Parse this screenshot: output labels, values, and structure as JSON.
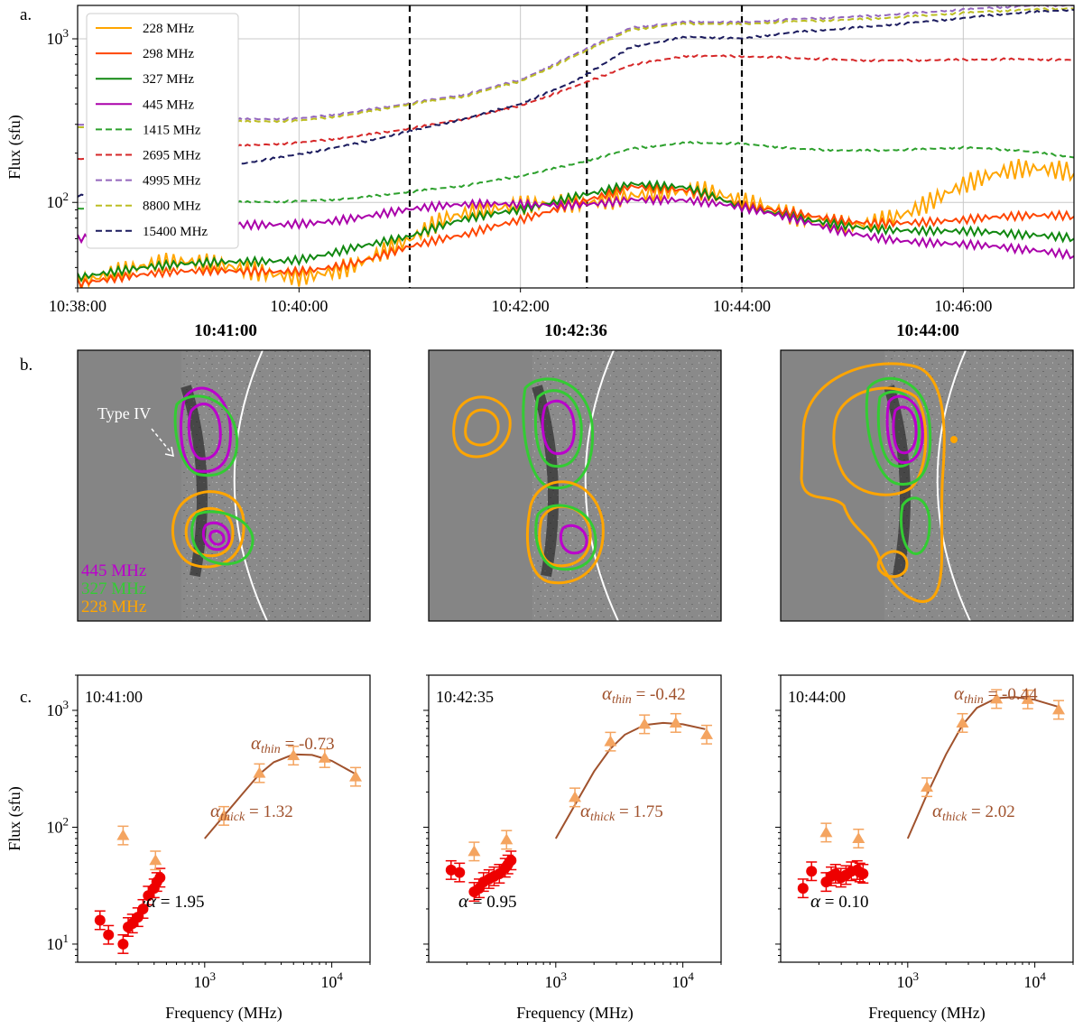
{
  "panel_letters": {
    "a": "a.",
    "b": "b.",
    "c": "c."
  },
  "chart_data": [
    {
      "type": "line",
      "panel": "a",
      "ylabel": "Flux (sfu)",
      "yscale": "log",
      "ylim": [
        30,
        1600
      ],
      "xlim": [
        "10:38:00",
        "10:47:00"
      ],
      "x_ticks": [
        "10:38:00",
        "10:40:00",
        "10:42:00",
        "10:44:00",
        "10:46:00"
      ],
      "y_ticks": [
        "10^2",
        "10^3"
      ],
      "grid": true,
      "legend_position": "top-left",
      "vertical_markers": [
        "10:41:00",
        "10:42:36",
        "10:44:00"
      ],
      "series": [
        {
          "name": "228 MHz",
          "color": "#ffa500",
          "style": "solid",
          "x": [
            "10:38:00",
            "10:39:00",
            "10:40:00",
            "10:40:30",
            "10:41:00",
            "10:41:20",
            "10:41:40",
            "10:42:00",
            "10:42:20",
            "10:42:40",
            "10:43:00",
            "10:43:20",
            "10:43:40",
            "10:44:00",
            "10:44:30",
            "10:45:00",
            "10:45:30",
            "10:46:00",
            "10:46:30",
            "10:47:00"
          ],
          "values": [
            35,
            38,
            40,
            45,
            55,
            70,
            80,
            95,
            110,
            115,
            120,
            115,
            105,
            88,
            80,
            82,
            95,
            120,
            140,
            150
          ]
        },
        {
          "name": "298 MHz",
          "color": "#ff4500",
          "style": "solid",
          "x": [
            "10:38:00",
            "10:39:00",
            "10:40:00",
            "10:40:30",
            "10:41:00",
            "10:41:30",
            "10:42:00",
            "10:42:30",
            "10:43:00",
            "10:43:30",
            "10:44:00",
            "10:44:30",
            "10:45:00",
            "10:45:30",
            "10:46:00",
            "10:46:30",
            "10:47:00"
          ],
          "values": [
            33,
            36,
            40,
            44,
            52,
            60,
            78,
            105,
            130,
            115,
            90,
            85,
            80,
            78,
            76,
            78,
            82
          ]
        },
        {
          "name": "327 MHz",
          "color": "#118811",
          "style": "solid",
          "x": [
            "10:38:00",
            "10:39:00",
            "10:40:00",
            "10:40:30",
            "10:41:00",
            "10:41:30",
            "10:42:00",
            "10:42:30",
            "10:43:00",
            "10:43:30",
            "10:44:00",
            "10:44:30",
            "10:45:00",
            "10:45:30",
            "10:46:00",
            "10:46:30",
            "10:47:00"
          ],
          "values": [
            36,
            40,
            47,
            55,
            60,
            75,
            90,
            115,
            135,
            120,
            88,
            80,
            75,
            70,
            65,
            60,
            60
          ]
        },
        {
          "name": "445 MHz",
          "color": "#aa00aa",
          "style": "solid",
          "x": [
            "10:38:00",
            "10:39:00",
            "10:40:00",
            "10:40:30",
            "10:41:00",
            "10:41:30",
            "10:42:00",
            "10:42:30",
            "10:43:00",
            "10:43:30",
            "10:44:00",
            "10:44:30",
            "10:45:00",
            "10:45:30",
            "10:46:00",
            "10:46:30",
            "10:47:00"
          ],
          "values": [
            62,
            68,
            78,
            83,
            88,
            92,
            97,
            102,
            108,
            100,
            88,
            78,
            68,
            60,
            54,
            49,
            47
          ]
        },
        {
          "name": "1415 MHz",
          "color": "#2ca02c",
          "style": "dashed",
          "x": [
            "10:38:00",
            "10:39:00",
            "10:40:00",
            "10:40:30",
            "10:41:00",
            "10:41:30",
            "10:42:00",
            "10:42:30",
            "10:43:00",
            "10:43:30",
            "10:44:00",
            "10:44:30",
            "10:45:00",
            "10:45:30",
            "10:46:00",
            "10:46:30",
            "10:47:00"
          ],
          "values": [
            92,
            98,
            103,
            107,
            115,
            125,
            145,
            175,
            215,
            230,
            225,
            212,
            210,
            212,
            215,
            205,
            188
          ]
        },
        {
          "name": "2695 MHz",
          "color": "#d62728",
          "style": "dashed",
          "x": [
            "10:38:00",
            "10:39:00",
            "10:40:00",
            "10:40:30",
            "10:41:00",
            "10:41:30",
            "10:42:00",
            "10:42:30",
            "10:43:00",
            "10:43:30",
            "10:44:00",
            "10:44:30",
            "10:45:00",
            "10:45:30",
            "10:46:00",
            "10:46:30",
            "10:47:00"
          ],
          "values": [
            185,
            210,
            235,
            255,
            280,
            320,
            390,
            520,
            700,
            780,
            770,
            760,
            750,
            745,
            740,
            740,
            740
          ]
        },
        {
          "name": "4995 MHz",
          "color": "#9467bd",
          "style": "dashed",
          "x": [
            "10:38:00",
            "10:39:00",
            "10:40:00",
            "10:40:30",
            "10:41:00",
            "10:41:30",
            "10:42:00",
            "10:42:30",
            "10:43:00",
            "10:43:30",
            "10:44:00",
            "10:44:30",
            "10:45:00",
            "10:45:30",
            "10:46:00",
            "10:46:30",
            "10:47:00"
          ],
          "values": [
            300,
            315,
            330,
            360,
            400,
            450,
            560,
            820,
            1180,
            1260,
            1240,
            1320,
            1380,
            1440,
            1500,
            1560,
            1600
          ]
        },
        {
          "name": "8800 MHz",
          "color": "#bcbd22",
          "style": "dashed",
          "x": [
            "10:38:00",
            "10:39:00",
            "10:40:00",
            "10:40:30",
            "10:41:00",
            "10:41:30",
            "10:42:00",
            "10:42:30",
            "10:43:00",
            "10:43:30",
            "10:44:00",
            "10:44:30",
            "10:45:00",
            "10:45:30",
            "10:46:00",
            "10:46:30",
            "10:47:00"
          ],
          "values": [
            290,
            305,
            320,
            350,
            395,
            440,
            550,
            800,
            1150,
            1230,
            1210,
            1280,
            1330,
            1380,
            1430,
            1480,
            1530
          ]
        },
        {
          "name": "15400 MHz",
          "color": "#1b1b5e",
          "style": "dashed",
          "x": [
            "10:38:00",
            "10:39:00",
            "10:40:00",
            "10:40:30",
            "10:41:00",
            "10:41:30",
            "10:42:00",
            "10:42:30",
            "10:43:00",
            "10:43:30",
            "10:44:00",
            "10:44:30",
            "10:45:00",
            "10:45:30",
            "10:46:00",
            "10:46:30",
            "10:47:00"
          ],
          "values": [
            110,
            150,
            200,
            230,
            270,
            320,
            400,
            560,
            900,
            1020,
            990,
            1100,
            1180,
            1260,
            1330,
            1420,
            1500
          ]
        }
      ]
    },
    {
      "type": "image-contours",
      "panel": "b",
      "frames": [
        {
          "time": "10:41:00",
          "annotation": "Type IV",
          "legend": [
            {
              "name": "445 MHz",
              "color": "#bb00cc"
            },
            {
              "name": "327 MHz",
              "color": "#33cc33"
            },
            {
              "name": "228 MHz",
              "color": "#ffa500"
            }
          ]
        },
        {
          "time": "10:42:36"
        },
        {
          "time": "10:44:00"
        }
      ]
    },
    {
      "type": "scatter",
      "panel": "c",
      "xlabel": "Frequency (MHz)",
      "ylabel": "Flux (sfu)",
      "xscale": "log",
      "yscale": "log",
      "xlim": [
        100,
        20000
      ],
      "ylim": [
        7,
        2000
      ],
      "x_ticks": [
        "10^3",
        "10^4"
      ],
      "y_ticks": [
        "10^1",
        "10^2",
        "10^3"
      ],
      "subplots": [
        {
          "time": "10:41:00",
          "alpha_thin_label": "α",
          "alpha_thin_sub": "thin",
          "alpha_thin_value": " = -0.73",
          "alpha_thick_label": "α",
          "alpha_thick_sub": "thick",
          "alpha_thick_value": " = 1.32",
          "alpha_label": "α",
          "alpha_value": " = 1.95",
          "low_freq": [
            150,
            175,
            228,
            250,
            270,
            298,
            327,
            360,
            400,
            420,
            445
          ],
          "low_flux": [
            16,
            12,
            10,
            14,
            15,
            17,
            20,
            26,
            30,
            34,
            37
          ],
          "mid_freq": [
            228,
            410
          ],
          "mid_flux": [
            85,
            52
          ],
          "high_freq": [
            1415,
            2695,
            4995,
            8800,
            15400
          ],
          "high_flux": [
            125,
            290,
            410,
            390,
            270
          ],
          "fit_low": {
            "x": [
              260,
              445
            ],
            "y": [
              14,
              40
            ]
          },
          "fit_high": {
            "x": [
              1000,
              1415,
              2000,
              2695,
              3500,
              5000,
              7000,
              10000,
              15000
            ],
            "y": [
              80,
              125,
              195,
              285,
              360,
              420,
              415,
              370,
              290
            ]
          }
        },
        {
          "time": "10:42:35",
          "alpha_thin_label": "α",
          "alpha_thin_sub": "thin",
          "alpha_thin_value": " = -0.42",
          "alpha_thick_label": "α",
          "alpha_thick_sub": "thick",
          "alpha_thick_value": " = 1.75",
          "alpha_label": "α",
          "alpha_value": " = 0.95",
          "low_freq": [
            150,
            175,
            228,
            250,
            270,
            298,
            327,
            360,
            400,
            420,
            445
          ],
          "low_flux": [
            43,
            41,
            28,
            30,
            34,
            36,
            38,
            40,
            45,
            48,
            52
          ],
          "mid_freq": [
            228,
            410
          ],
          "mid_flux": [
            62,
            78
          ],
          "high_freq": [
            1415,
            2695,
            4995,
            8800,
            15400
          ],
          "high_flux": [
            180,
            540,
            760,
            780,
            620
          ],
          "fit_low": {
            "x": [
              228,
              445
            ],
            "y": [
              30,
              52
            ]
          },
          "fit_high": {
            "x": [
              1000,
              1415,
              2000,
              2695,
              3500,
              5000,
              7000,
              10000,
              15000
            ],
            "y": [
              80,
              155,
              300,
              470,
              620,
              750,
              780,
              760,
              690
            ]
          }
        },
        {
          "time": "10:44:00",
          "alpha_thin_label": "α",
          "alpha_thin_sub": "thin",
          "alpha_thin_value": " = -0.44",
          "alpha_thick_label": "α",
          "alpha_thick_sub": "thick",
          "alpha_thick_value": " = 2.02",
          "alpha_label": "α",
          "alpha_value": " = 0.10",
          "low_freq": [
            150,
            175,
            228,
            250,
            270,
            298,
            327,
            360,
            400,
            420,
            445
          ],
          "low_flux": [
            30,
            42,
            34,
            38,
            40,
            37,
            39,
            42,
            43,
            41,
            40
          ],
          "mid_freq": [
            228,
            410
          ],
          "mid_flux": [
            90,
            80
          ],
          "high_freq": [
            1415,
            2695,
            4995,
            8800,
            15400
          ],
          "high_flux": [
            220,
            780,
            1250,
            1240,
            1010
          ],
          "fit_low": {
            "x": [
              228,
              445
            ],
            "y": [
              38,
              40
            ]
          },
          "fit_high": {
            "x": [
              1000,
              1415,
              2000,
              2695,
              3500,
              5000,
              7000,
              10000,
              15000
            ],
            "y": [
              80,
              190,
              420,
              750,
              1050,
              1270,
              1300,
              1230,
              1080
            ]
          }
        }
      ]
    }
  ]
}
